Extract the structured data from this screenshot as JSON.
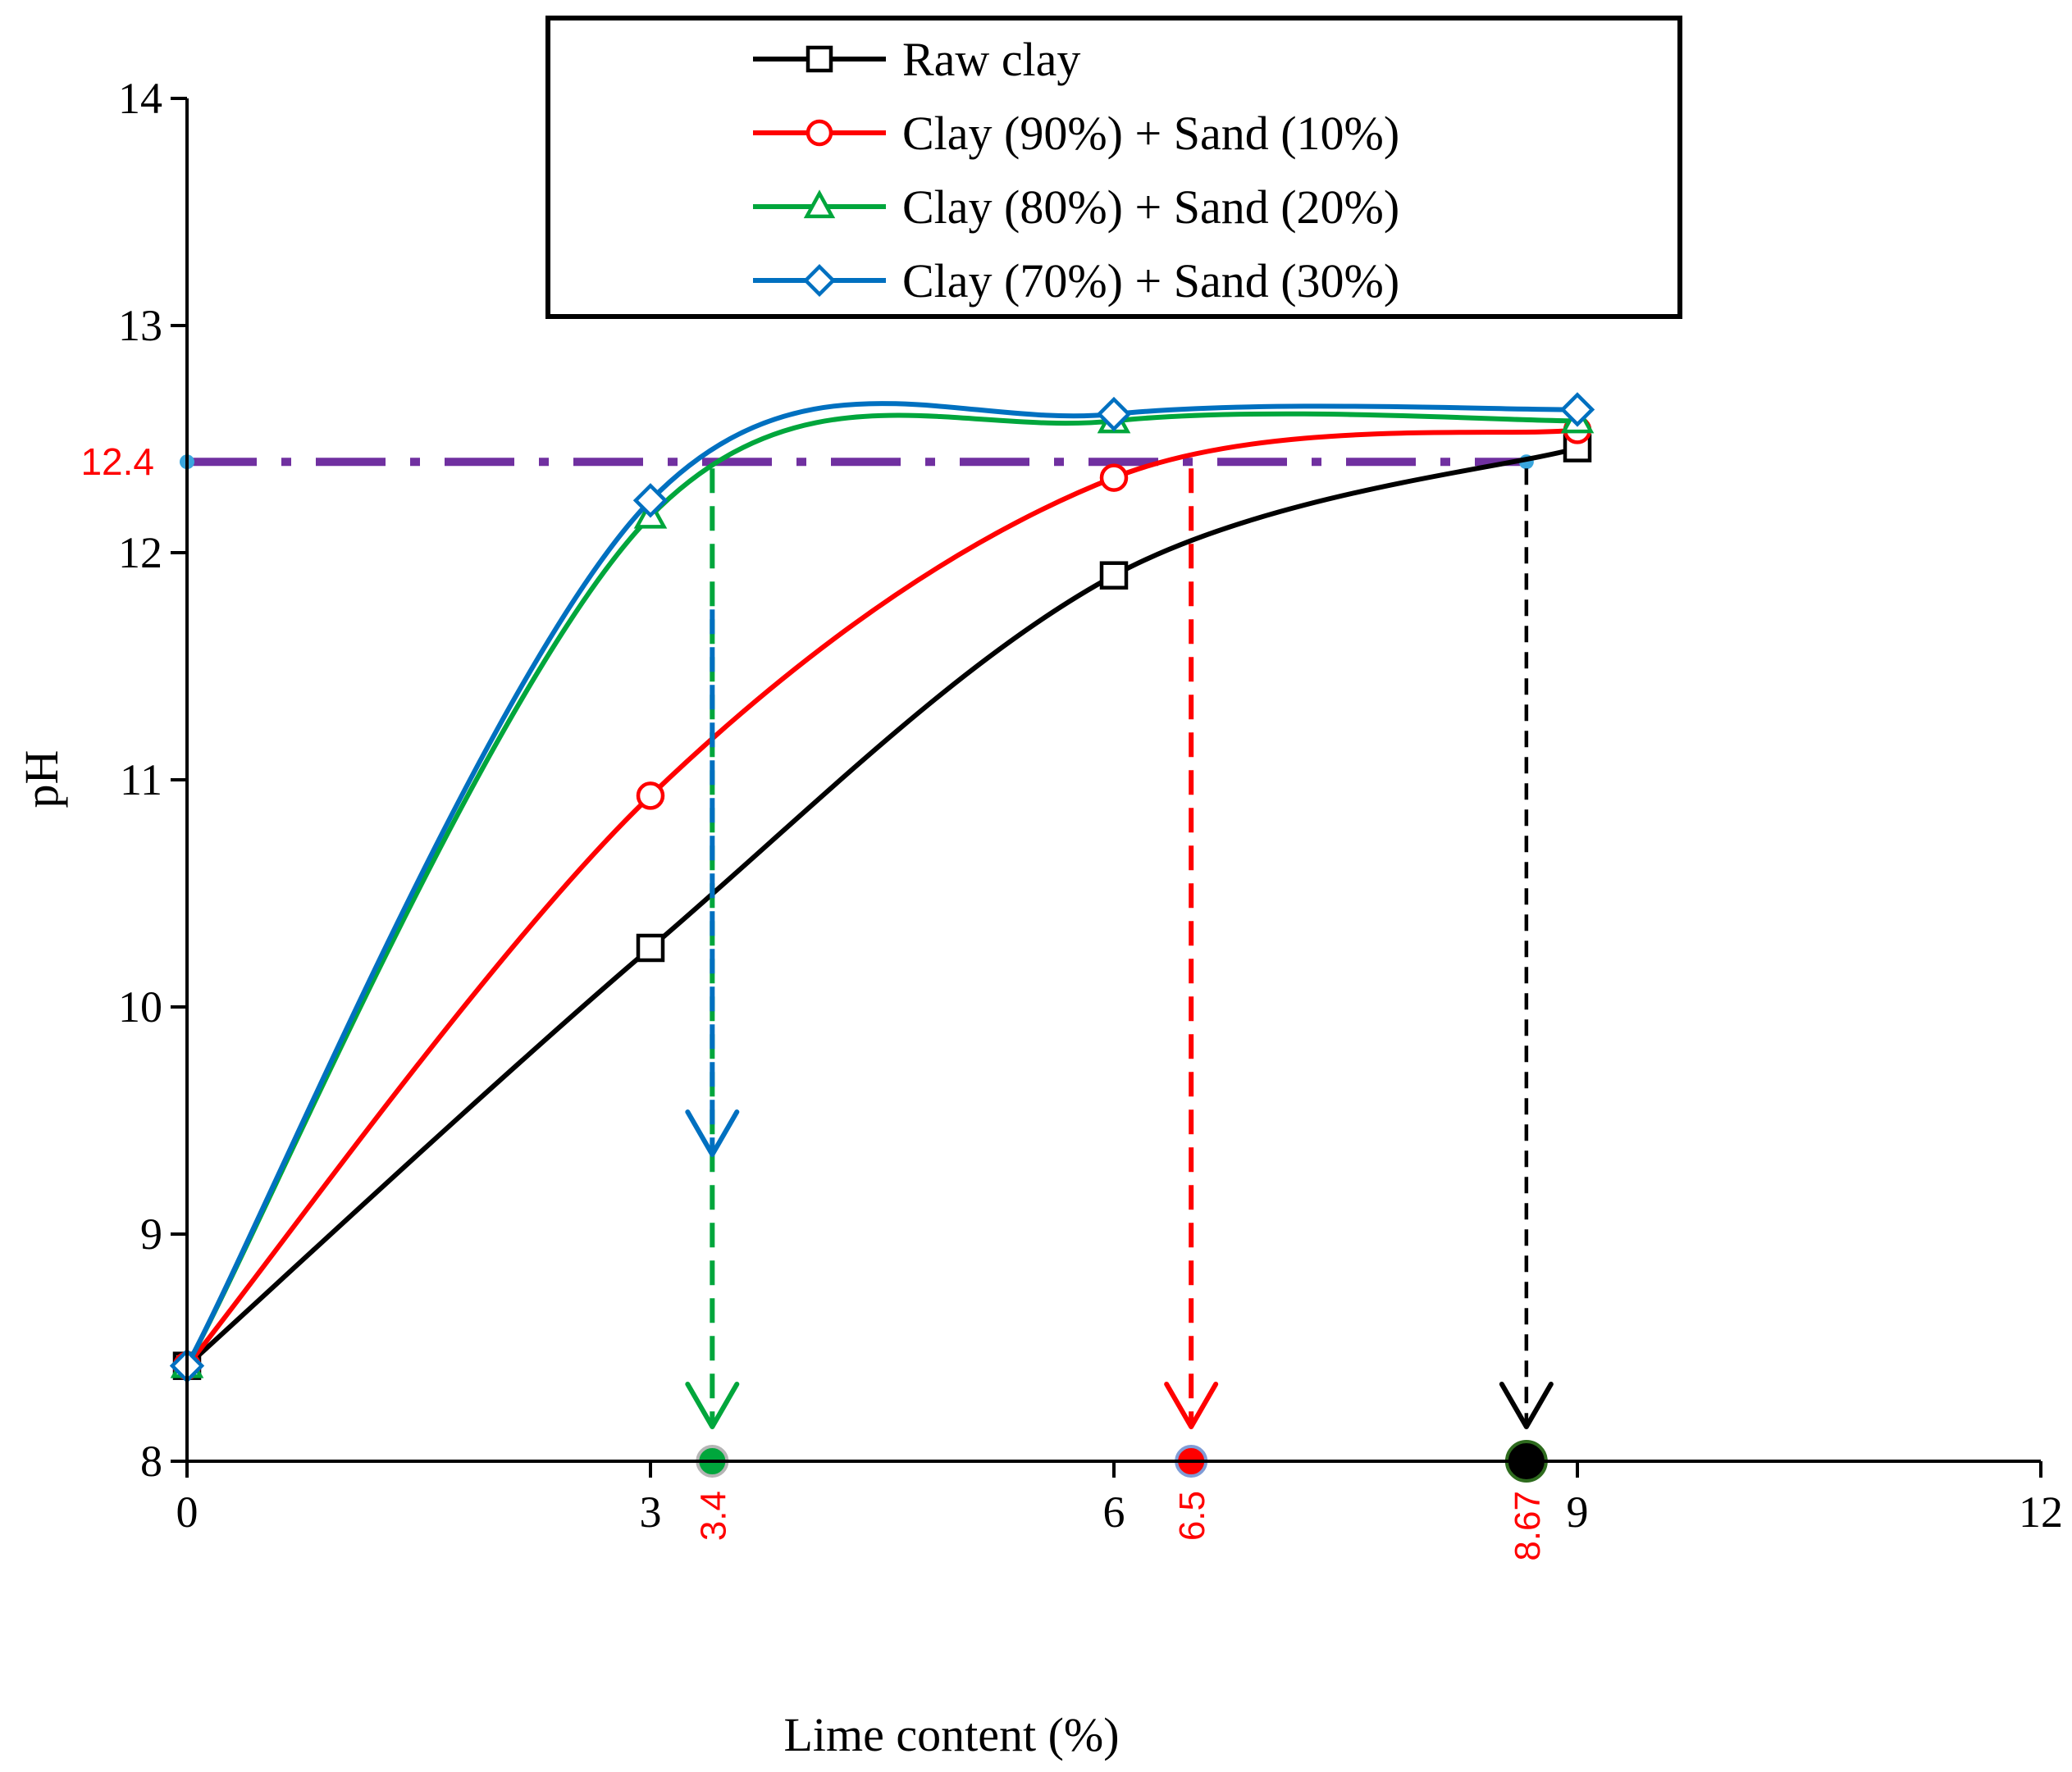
{
  "chart_data": {
    "type": "line",
    "title": "",
    "xlabel": "Lime content (%)",
    "ylabel": "pH",
    "xlim": [
      0,
      12
    ],
    "ylim": [
      8,
      14
    ],
    "xticks": [
      "0",
      "3",
      "6",
      "9",
      "12"
    ],
    "yticks": [
      "8",
      "9",
      "10",
      "11",
      "12",
      "13",
      "14"
    ],
    "grid": false,
    "legend_position": "top",
    "x": [
      0,
      3,
      6,
      9
    ],
    "series": [
      {
        "name": "Raw clay",
        "color": "#000000",
        "marker": "square",
        "values": [
          8.42,
          10.26,
          11.9,
          12.46
        ]
      },
      {
        "name": "Clay (90%) + Sand (10%)",
        "color": "#ff0000",
        "marker": "circle",
        "values": [
          8.42,
          10.93,
          12.33,
          12.54
        ]
      },
      {
        "name": "Clay (80%) + Sand (20%)",
        "color": "#00a63c",
        "marker": "triangle",
        "values": [
          8.42,
          12.16,
          12.58,
          12.58
        ]
      },
      {
        "name": "Clay (70%) + Sand (30%)",
        "color": "#0070c0",
        "marker": "diamond",
        "values": [
          8.42,
          12.23,
          12.61,
          12.63
        ]
      }
    ],
    "reference_line": {
      "y": 12.4,
      "label": "12.4",
      "color": "#7030a0",
      "label_color": "#ff0000"
    },
    "annotations": [
      {
        "x": 3.4,
        "label": "3.4",
        "arrow_colors": [
          "#00a63c",
          "#0070c0"
        ],
        "dot_color": "#00a63c"
      },
      {
        "x": 6.5,
        "label": "6.5",
        "arrow_colors": [
          "#ff0000"
        ],
        "dot_color": "#ff0000"
      },
      {
        "x": 8.67,
        "label": "8.67",
        "arrow_colors": [
          "#000000"
        ],
        "dot_color": "#000000"
      }
    ]
  }
}
